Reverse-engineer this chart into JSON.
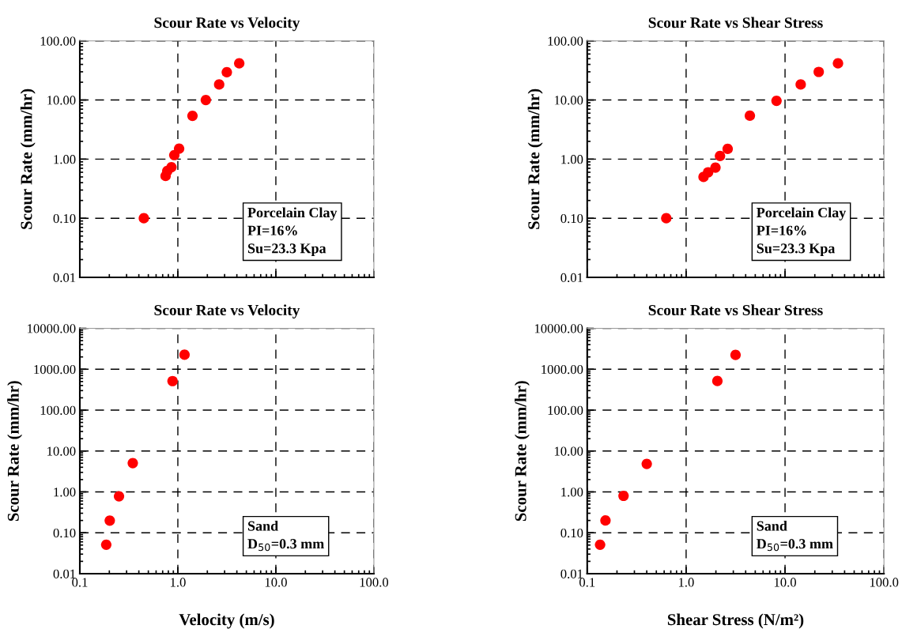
{
  "chart_data": [
    {
      "type": "scatter",
      "title": "Scour Rate vs Velocity",
      "ylabel": "Scour Rate (mm/hr)",
      "log": "xy",
      "grid": true,
      "marker": "circle",
      "tick_labels": "y",
      "x": [
        0.45,
        0.75,
        0.78,
        0.86,
        0.92,
        1.03,
        1.41,
        1.93,
        2.64,
        3.16,
        4.23
      ],
      "series": [
        {
          "color": "#ff0000",
          "values": [
            0.1,
            0.52,
            0.63,
            0.73,
            1.17,
            1.5,
            5.4,
            10,
            18.3,
            29.5,
            41.7
          ]
        }
      ],
      "xlim": [
        0.1,
        100
      ],
      "xticks": [
        {
          "value": 0.1,
          "label": null
        },
        {
          "value": 1,
          "label": null
        },
        {
          "value": 10,
          "label": null
        },
        {
          "value": 100,
          "label": null
        }
      ],
      "ylim": [
        0.01,
        100
      ],
      "yticks": [
        {
          "value": 0.01,
          "label": "0.01"
        },
        {
          "value": 0.1,
          "label": "0.10"
        },
        {
          "value": 1,
          "label": "1.00"
        },
        {
          "value": 10,
          "label": "10.00"
        },
        {
          "value": 100,
          "label": "100.00"
        }
      ],
      "annotations": [
        "Porcelain Clay\nPI=16%\nSu=23.3 Kpa"
      ]
    },
    {
      "type": "scatter",
      "title": "Scour Rate vs Shear Stress",
      "ylabel": "Scour Rate (mm/hr)",
      "log": "xy",
      "grid": true,
      "marker": "circle",
      "tick_labels": "y",
      "x": [
        0.63,
        1.5,
        1.67,
        1.98,
        2.2,
        2.63,
        4.41,
        8.2,
        14.4,
        21.9,
        34.3
      ],
      "series": [
        {
          "color": "#ff0000",
          "values": [
            0.1,
            0.5,
            0.6,
            0.72,
            1.13,
            1.49,
            5.43,
            9.7,
            18.3,
            29.9,
            41.7
          ]
        }
      ],
      "xlim": [
        0.1,
        100
      ],
      "xticks": [
        {
          "value": 0.1,
          "label": null
        },
        {
          "value": 1,
          "label": null
        },
        {
          "value": 10,
          "label": null
        },
        {
          "value": 100,
          "label": null
        }
      ],
      "ylim": [
        0.01,
        100
      ],
      "yticks": [
        {
          "value": 0.01,
          "label": "0.01"
        },
        {
          "value": 0.1,
          "label": "0.10"
        },
        {
          "value": 1,
          "label": "1.00"
        },
        {
          "value": 10,
          "label": "10.00"
        },
        {
          "value": 100,
          "label": "100.00"
        }
      ],
      "annotations": [
        "Porcelain Clay\nPI=16%\nSu=23.3 Kpa"
      ]
    },
    {
      "type": "scatter",
      "title": "Scour Rate vs Velocity",
      "xlabel": "Velocity (m/s)",
      "ylabel": "Scour Rate (mm/hr)",
      "log": "xy",
      "grid": true,
      "marker": "circle",
      "x": [
        0.186,
        0.202,
        0.251,
        0.347,
        0.883,
        1.17
      ],
      "series": [
        {
          "color": "#ff0000",
          "values": [
            0.051,
            0.198,
            0.78,
            5.06,
            513,
            2260
          ]
        }
      ],
      "xlim": [
        0.1,
        100
      ],
      "xticks": [
        {
          "value": 0.1,
          "label": "0.1"
        },
        {
          "value": 1,
          "label": "1.0"
        },
        {
          "value": 10,
          "label": "10.0"
        },
        {
          "value": 100,
          "label": "100.0"
        }
      ],
      "ylim": [
        0.01,
        10000
      ],
      "yticks": [
        {
          "value": 0.01,
          "label": "0.01"
        },
        {
          "value": 0.1,
          "label": "0.10"
        },
        {
          "value": 1,
          "label": "1.00"
        },
        {
          "value": 10,
          "label": "10.00"
        },
        {
          "value": 100,
          "label": "100.00"
        },
        {
          "value": 1000,
          "label": "1000.00"
        },
        {
          "value": 10000,
          "label": "10000.00"
        }
      ],
      "annotations": [
        "Sand\nD$_{50}$=0.3 mm"
      ]
    },
    {
      "type": "scatter",
      "title": "Scour Rate vs Shear Stress",
      "xlabel": "Shear Stress (N/m²)",
      "ylabel": "Scour Rate (mm/hr)",
      "log": "xy",
      "grid": true,
      "marker": "circle",
      "x": [
        0.135,
        0.153,
        0.233,
        0.4,
        2.07,
        3.16
      ],
      "series": [
        {
          "color": "#ff0000",
          "values": [
            0.051,
            0.2,
            0.8,
            4.84,
            514,
            2240
          ]
        }
      ],
      "xlim": [
        0.1,
        100
      ],
      "xticks": [
        {
          "value": 0.1,
          "label": "0.1"
        },
        {
          "value": 1,
          "label": "1.0"
        },
        {
          "value": 10,
          "label": "10.0"
        },
        {
          "value": 100,
          "label": "100.0"
        }
      ],
      "ylim": [
        0.01,
        10000
      ],
      "yticks": [
        {
          "value": 0.01,
          "label": "0.01"
        },
        {
          "value": 0.1,
          "label": "0.10"
        },
        {
          "value": 1,
          "label": "1.00"
        },
        {
          "value": 10,
          "label": "10.00"
        },
        {
          "value": 100,
          "label": "100.00"
        },
        {
          "value": 1000,
          "label": "1000.00"
        },
        {
          "value": 10000,
          "label": "10000.00"
        }
      ],
      "annotations": [
        "Sand\nD$_{50}$=0.3 mm"
      ]
    }
  ]
}
